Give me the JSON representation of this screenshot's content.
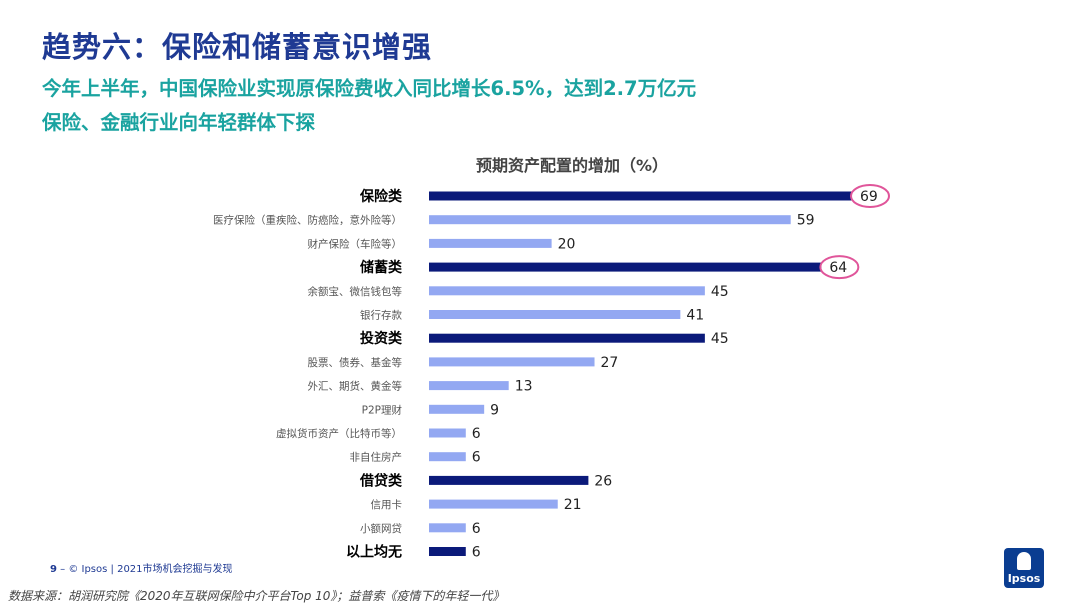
{
  "header": {
    "title": "趋势六：保险和储蓄意识增强",
    "subtitle_line1": "今年上半年，中国保险业实现原保险费收入同比增长6.5%，达到2.7万亿元",
    "subtitle_line2": "保险、金融行业向年轻群体下探"
  },
  "chart_data": {
    "type": "bar",
    "orientation": "horizontal",
    "title": "预期资产配置的增加（%）",
    "categories": [
      "保险类",
      "医疗保险（重疾险、防癌险，意外险等）",
      "财产保险（车险等）",
      "储蓄类",
      "余额宝、微信钱包等",
      "银行存款",
      "投资类",
      "股票、债券、基金等",
      "外汇、期货、黄金等",
      "P2P理财",
      "虚拟货币资产（比特币等）",
      "非自住房产",
      "借贷类",
      "信用卡",
      "小额网贷",
      "以上均无"
    ],
    "values": [
      69,
      59,
      20,
      64,
      45,
      41,
      45,
      27,
      13,
      9,
      6,
      6,
      26,
      21,
      6,
      6
    ],
    "is_group": [
      true,
      false,
      false,
      true,
      false,
      false,
      true,
      false,
      false,
      false,
      false,
      false,
      true,
      false,
      false,
      true
    ],
    "highlighted": [
      true,
      false,
      false,
      true,
      false,
      false,
      false,
      false,
      false,
      false,
      false,
      false,
      false,
      false,
      false,
      false
    ],
    "xlim": [
      0,
      69
    ],
    "colors": {
      "group": "#0b1a7a",
      "item": "#93a8f2",
      "highlight": "#e0559a"
    }
  },
  "footer": {
    "page_number": "9",
    "page_text": "– © Ipsos | 2021市场机会挖掘与发现",
    "source": "数据来源：胡润研究院《2020年互联网保险中介平台Top 10》；益普索《疫情下的年轻一代》"
  },
  "logo": {
    "text": "Ipsos"
  }
}
